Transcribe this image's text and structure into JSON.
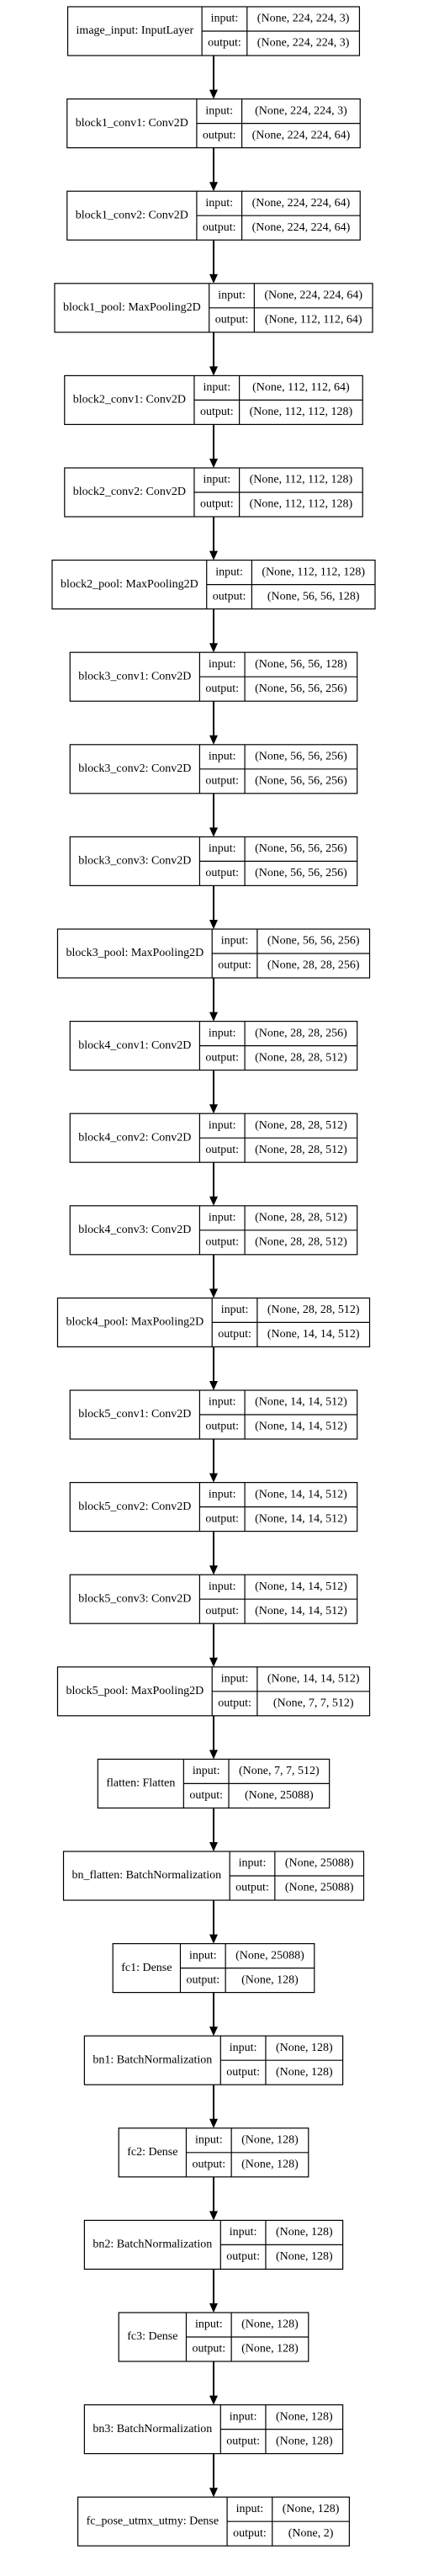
{
  "diagram": {
    "nodes": [
      {
        "name": "image_input: InputLayer",
        "input": "(None, 224, 224, 3)",
        "output": "(None, 224, 224, 3)"
      },
      {
        "name": "block1_conv1: Conv2D",
        "input": "(None, 224, 224, 3)",
        "output": "(None, 224, 224, 64)"
      },
      {
        "name": "block1_conv2: Conv2D",
        "input": "(None, 224, 224, 64)",
        "output": "(None, 224, 224, 64)"
      },
      {
        "name": "block1_pool: MaxPooling2D",
        "input": "(None, 224, 224, 64)",
        "output": "(None, 112, 112, 64)"
      },
      {
        "name": "block2_conv1: Conv2D",
        "input": "(None, 112, 112, 64)",
        "output": "(None, 112, 112, 128)"
      },
      {
        "name": "block2_conv2: Conv2D",
        "input": "(None, 112, 112, 128)",
        "output": "(None, 112, 112, 128)"
      },
      {
        "name": "block2_pool: MaxPooling2D",
        "input": "(None, 112, 112, 128)",
        "output": "(None, 56, 56, 128)"
      },
      {
        "name": "block3_conv1: Conv2D",
        "input": "(None, 56, 56, 128)",
        "output": "(None, 56, 56, 256)"
      },
      {
        "name": "block3_conv2: Conv2D",
        "input": "(None, 56, 56, 256)",
        "output": "(None, 56, 56, 256)"
      },
      {
        "name": "block3_conv3: Conv2D",
        "input": "(None, 56, 56, 256)",
        "output": "(None, 56, 56, 256)"
      },
      {
        "name": "block3_pool: MaxPooling2D",
        "input": "(None, 56, 56, 256)",
        "output": "(None, 28, 28, 256)"
      },
      {
        "name": "block4_conv1: Conv2D",
        "input": "(None, 28, 28, 256)",
        "output": "(None, 28, 28, 512)"
      },
      {
        "name": "block4_conv2: Conv2D",
        "input": "(None, 28, 28, 512)",
        "output": "(None, 28, 28, 512)"
      },
      {
        "name": "block4_conv3: Conv2D",
        "input": "(None, 28, 28, 512)",
        "output": "(None, 28, 28, 512)"
      },
      {
        "name": "block4_pool: MaxPooling2D",
        "input": "(None, 28, 28, 512)",
        "output": "(None, 14, 14, 512)"
      },
      {
        "name": "block5_conv1: Conv2D",
        "input": "(None, 14, 14, 512)",
        "output": "(None, 14, 14, 512)"
      },
      {
        "name": "block5_conv2: Conv2D",
        "input": "(None, 14, 14, 512)",
        "output": "(None, 14, 14, 512)"
      },
      {
        "name": "block5_conv3: Conv2D",
        "input": "(None, 14, 14, 512)",
        "output": "(None, 14, 14, 512)"
      },
      {
        "name": "block5_pool: MaxPooling2D",
        "input": "(None, 14, 14, 512)",
        "output": "(None, 7, 7, 512)"
      },
      {
        "name": "flatten: Flatten",
        "input": "(None, 7, 7, 512)",
        "output": "(None, 25088)"
      },
      {
        "name": "bn_flatten: BatchNormalization",
        "input": "(None, 25088)",
        "output": "(None, 25088)"
      },
      {
        "name": "fc1: Dense",
        "input": "(None, 25088)",
        "output": "(None, 128)"
      },
      {
        "name": "bn1: BatchNormalization",
        "input": "(None, 128)",
        "output": "(None, 128)"
      },
      {
        "name": "fc2: Dense",
        "input": "(None, 128)",
        "output": "(None, 128)"
      },
      {
        "name": "bn2: BatchNormalization",
        "input": "(None, 128)",
        "output": "(None, 128)"
      },
      {
        "name": "fc3: Dense",
        "input": "(None, 128)",
        "output": "(None, 128)"
      },
      {
        "name": "bn3: BatchNormalization",
        "input": "(None, 128)",
        "output": "(None, 128)"
      },
      {
        "name": "fc_pose_utmx_utmy: Dense",
        "input": "(None, 128)",
        "output": "(None, 2)"
      }
    ]
  }
}
